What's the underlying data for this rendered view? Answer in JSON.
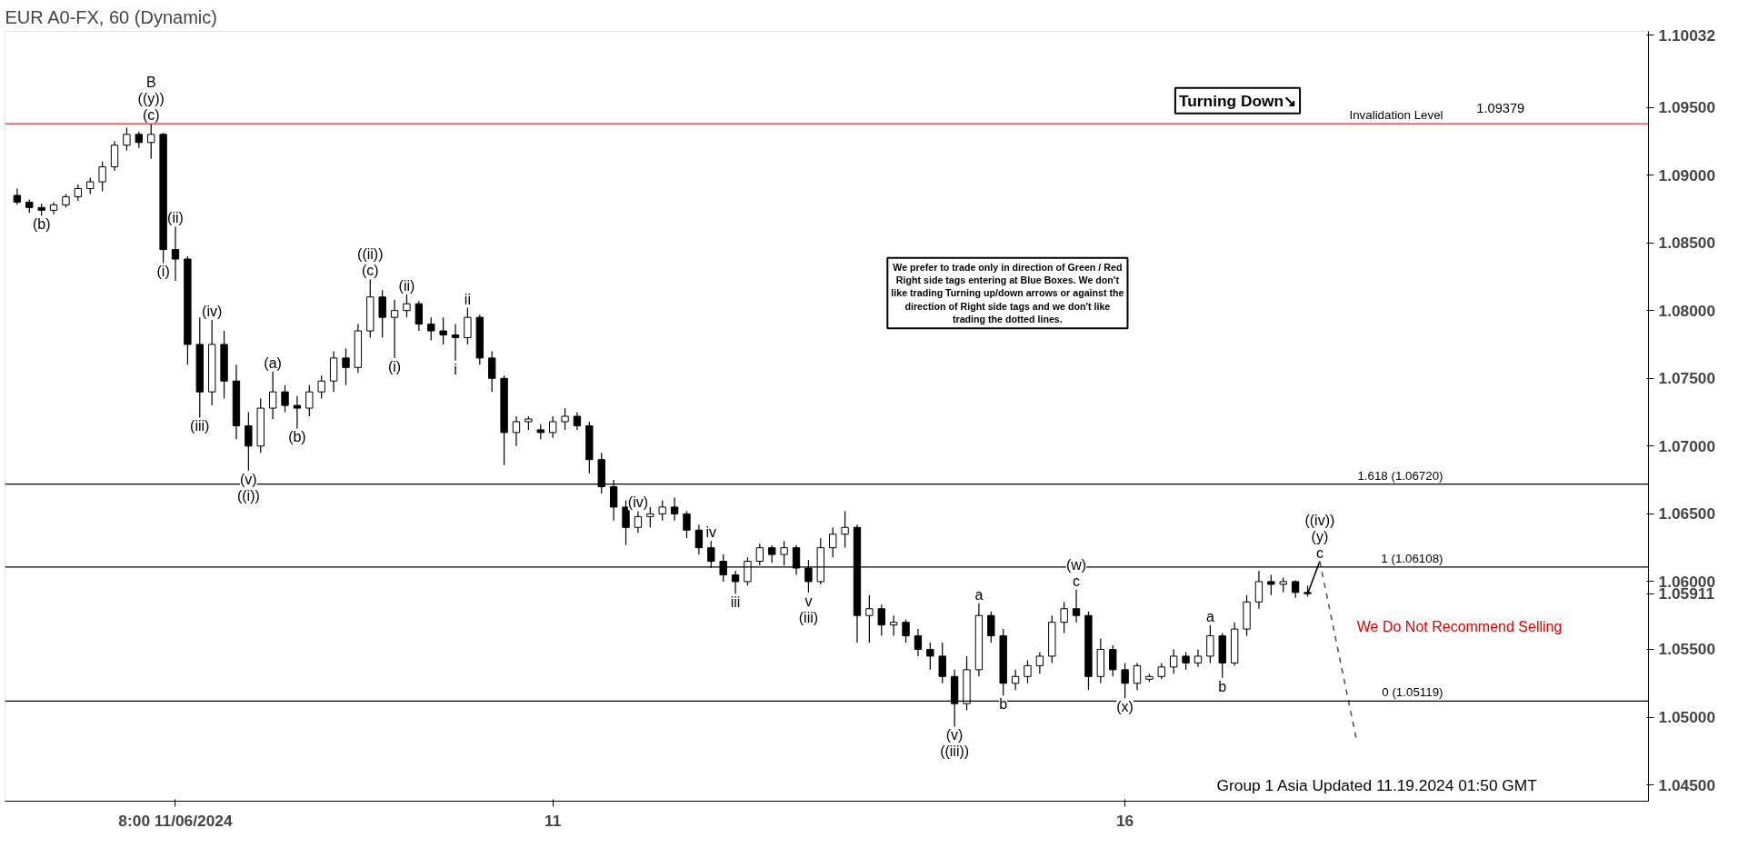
{
  "chart_data": {
    "type": "candlestick",
    "title": "EUR A0-FX, 60 (Dynamic)",
    "categories": [
      null,
      null,
      null,
      null,
      null,
      null,
      null,
      null,
      null,
      null,
      null,
      null,
      null,
      "8:00 11/06/2024",
      null,
      null,
      null,
      null,
      null,
      null,
      null,
      null,
      null,
      null,
      null,
      null,
      null,
      null,
      null,
      null,
      null,
      null,
      null,
      null,
      null,
      null,
      null,
      null,
      null,
      null,
      null,
      null,
      null,
      null,
      "11",
      null,
      null,
      null,
      null,
      null,
      null,
      null,
      null,
      null,
      null,
      null,
      null,
      null,
      null,
      null,
      null,
      null,
      null,
      null,
      null,
      null,
      null,
      null,
      null,
      null,
      null,
      null,
      null,
      null,
      null,
      null,
      null,
      null,
      null,
      null,
      null,
      null,
      null,
      null,
      null,
      null,
      null,
      null,
      null,
      null,
      null,
      "16",
      null,
      null,
      null,
      null,
      null,
      null,
      null,
      null,
      null,
      null,
      null,
      null,
      null,
      null,
      null,
      null,
      null,
      null,
      null,
      null,
      null,
      null,
      null,
      null,
      null,
      null,
      null,
      null,
      null,
      null,
      null,
      null,
      null,
      null,
      null,
      null,
      null,
      null,
      null,
      null,
      null,
      null
    ],
    "ohlc": [
      [
        1.0885,
        1.089,
        1.0878,
        1.088
      ],
      [
        1.088,
        1.0882,
        1.0872,
        1.0876
      ],
      [
        1.0876,
        1.0879,
        1.087,
        1.0874
      ],
      [
        1.0874,
        1.088,
        1.0871,
        1.0878
      ],
      [
        1.0878,
        1.0886,
        1.0876,
        1.0884
      ],
      [
        1.0884,
        1.0893,
        1.0881,
        1.089
      ],
      [
        1.089,
        1.0898,
        1.0886,
        1.0895
      ],
      [
        1.0895,
        1.091,
        1.0888,
        1.0906
      ],
      [
        1.0906,
        1.0925,
        1.0903,
        1.0922
      ],
      [
        1.0922,
        1.0935,
        1.0918,
        1.093
      ],
      [
        1.093,
        1.0932,
        1.092,
        1.0924
      ],
      [
        1.0924,
        1.09379,
        1.0912,
        1.093
      ],
      [
        1.093,
        1.0931,
        1.0835,
        1.0845
      ],
      [
        1.0845,
        1.0862,
        1.0822,
        1.0838
      ],
      [
        1.0838,
        1.084,
        1.076,
        1.0775
      ],
      [
        1.0775,
        1.0795,
        1.0721,
        1.074
      ],
      [
        1.074,
        1.0793,
        1.073,
        1.0775
      ],
      [
        1.0775,
        1.0785,
        1.0735,
        1.0748
      ],
      [
        1.0748,
        1.076,
        1.0705,
        1.0715
      ],
      [
        1.0715,
        1.0725,
        1.0682,
        1.07
      ],
      [
        1.07,
        1.0735,
        1.0695,
        1.0728
      ],
      [
        1.0728,
        1.0755,
        1.072,
        1.074
      ],
      [
        1.074,
        1.0745,
        1.0725,
        1.073
      ],
      [
        1.073,
        1.0737,
        1.0713,
        1.0728
      ],
      [
        1.0728,
        1.0745,
        1.0722,
        1.074
      ],
      [
        1.074,
        1.0752,
        1.0735,
        1.0748
      ],
      [
        1.0748,
        1.077,
        1.074,
        1.0765
      ],
      [
        1.0765,
        1.0772,
        1.0745,
        1.0758
      ],
      [
        1.0758,
        1.079,
        1.0754,
        1.0785
      ],
      [
        1.0785,
        1.0823,
        1.078,
        1.081
      ],
      [
        1.081,
        1.0815,
        1.078,
        1.0795
      ],
      [
        1.0795,
        1.0808,
        1.0765,
        1.08
      ],
      [
        1.08,
        1.0812,
        1.0795,
        1.0805
      ],
      [
        1.0805,
        1.0807,
        1.0785,
        1.079
      ],
      [
        1.079,
        1.0795,
        1.0778,
        1.0785
      ],
      [
        1.0785,
        1.0795,
        1.0775,
        1.0782
      ],
      [
        1.0782,
        1.079,
        1.0763,
        1.078
      ],
      [
        1.078,
        1.0802,
        1.0775,
        1.0795
      ],
      [
        1.0795,
        1.0797,
        1.076,
        1.0765
      ],
      [
        1.0765,
        1.077,
        1.074,
        1.075
      ],
      [
        1.075,
        1.0752,
        1.0686,
        1.071
      ],
      [
        1.071,
        1.0722,
        1.07,
        1.0718
      ],
      [
        1.0718,
        1.0722,
        1.0712,
        1.072
      ],
      [
        1.0712,
        1.0716,
        1.0705,
        1.071
      ],
      [
        1.071,
        1.0722,
        1.0706,
        1.0718
      ],
      [
        1.0718,
        1.0728,
        1.0712,
        1.0722
      ],
      [
        1.0722,
        1.0725,
        1.0712,
        1.0715
      ],
      [
        1.0715,
        1.0718,
        1.068,
        1.069
      ],
      [
        1.069,
        1.0695,
        1.0665,
        1.067
      ],
      [
        1.067,
        1.0675,
        1.0645,
        1.0655
      ],
      [
        1.0655,
        1.066,
        1.0627,
        1.064
      ],
      [
        1.064,
        1.0652,
        1.0636,
        1.0648
      ],
      [
        1.0648,
        1.0655,
        1.064,
        1.065
      ],
      [
        1.065,
        1.066,
        1.0645,
        1.0655
      ],
      [
        1.0655,
        1.0662,
        1.0645,
        1.065
      ],
      [
        1.065,
        1.0652,
        1.0632,
        1.0638
      ],
      [
        1.0638,
        1.0642,
        1.062,
        1.0625
      ],
      [
        1.0625,
        1.063,
        1.061,
        1.0615
      ],
      [
        1.0615,
        1.062,
        1.06,
        1.0605
      ],
      [
        1.0605,
        1.0608,
        1.0591,
        1.06
      ],
      [
        1.06,
        1.0618,
        1.0597,
        1.0615
      ],
      [
        1.0615,
        1.0628,
        1.0612,
        1.0625
      ],
      [
        1.0625,
        1.0627,
        1.0614,
        1.062
      ],
      [
        1.062,
        1.063,
        1.0612,
        1.0625
      ],
      [
        1.0625,
        1.0627,
        1.0605,
        1.061
      ],
      [
        1.061,
        1.0616,
        1.0592,
        1.06
      ],
      [
        1.06,
        1.0632,
        1.0598,
        1.0625
      ],
      [
        1.0625,
        1.064,
        1.0618,
        1.0635
      ],
      [
        1.0635,
        1.0652,
        1.0625,
        1.064
      ],
      [
        1.064,
        1.0642,
        1.0555,
        1.0575
      ],
      [
        1.0575,
        1.059,
        1.0555,
        1.058
      ],
      [
        1.058,
        1.0583,
        1.056,
        1.0568
      ],
      [
        1.0568,
        1.0575,
        1.056,
        1.057
      ],
      [
        1.057,
        1.0572,
        1.0555,
        1.056
      ],
      [
        1.056,
        1.0565,
        1.0545,
        1.055
      ],
      [
        1.055,
        1.0555,
        1.0535,
        1.0545
      ],
      [
        1.0545,
        1.0555,
        1.0525,
        1.053
      ],
      [
        1.053,
        1.0535,
        1.0493,
        1.051
      ],
      [
        1.051,
        1.0545,
        1.0505,
        1.0535
      ],
      [
        1.0535,
        1.0584,
        1.053,
        1.0575
      ],
      [
        1.0575,
        1.0578,
        1.0555,
        1.056
      ],
      [
        1.056,
        1.0565,
        1.0516,
        1.0525
      ],
      [
        1.0525,
        1.0535,
        1.052,
        1.053
      ],
      [
        1.053,
        1.0542,
        1.0525,
        1.0538
      ],
      [
        1.0538,
        1.0548,
        1.0532,
        1.0545
      ],
      [
        1.0545,
        1.0575,
        1.054,
        1.057
      ],
      [
        1.057,
        1.0585,
        1.0562,
        1.058
      ],
      [
        1.058,
        1.0594,
        1.057,
        1.0575
      ],
      [
        1.0575,
        1.0578,
        1.052,
        1.053
      ],
      [
        1.053,
        1.0558,
        1.0525,
        1.055
      ],
      [
        1.055,
        1.0553,
        1.053,
        1.0535
      ],
      [
        1.0535,
        1.054,
        1.0514,
        1.0525
      ],
      [
        1.0525,
        1.054,
        1.052,
        1.0538
      ],
      [
        1.0528,
        1.0532,
        1.0526,
        1.053
      ],
      [
        1.053,
        1.054,
        1.0528,
        1.0537
      ],
      [
        1.0537,
        1.055,
        1.0532,
        1.0545
      ],
      [
        1.0545,
        1.0548,
        1.0535,
        1.054
      ],
      [
        1.054,
        1.055,
        1.0537,
        1.0545
      ],
      [
        1.0545,
        1.0568,
        1.054,
        1.056
      ],
      [
        1.056,
        1.0562,
        1.0529,
        1.054
      ],
      [
        1.054,
        1.057,
        1.0538,
        1.0565
      ],
      [
        1.0565,
        1.059,
        1.056,
        1.0585
      ],
      [
        1.0585,
        1.0608,
        1.058,
        1.06
      ],
      [
        1.06,
        1.0605,
        1.059,
        1.0598
      ],
      [
        1.0598,
        1.0603,
        1.0592,
        1.06
      ],
      [
        1.06,
        1.0601,
        1.0588,
        1.0592
      ],
      [
        1.0592,
        1.0597,
        1.0589,
        1.05911
      ],
      null,
      null,
      null,
      null,
      null,
      null,
      null,
      null,
      null,
      null,
      null,
      null,
      null,
      null,
      null,
      null,
      null,
      null,
      null,
      null,
      null,
      null,
      null,
      null,
      null,
      null,
      null
    ],
    "color": "#000000",
    "series": [
      {
        "type": "line",
        "color": "#000000",
        "line_style": "solid",
        "values": [
          null,
          null,
          null,
          null,
          null,
          null,
          null,
          null,
          null,
          null,
          null,
          null,
          null,
          null,
          null,
          null,
          null,
          null,
          null,
          null,
          null,
          null,
          null,
          null,
          null,
          null,
          null,
          null,
          null,
          null,
          null,
          null,
          null,
          null,
          null,
          null,
          null,
          null,
          null,
          null,
          null,
          null,
          null,
          null,
          null,
          null,
          null,
          null,
          null,
          null,
          null,
          null,
          null,
          null,
          null,
          null,
          null,
          null,
          null,
          null,
          null,
          null,
          null,
          null,
          null,
          null,
          null,
          null,
          null,
          null,
          null,
          null,
          null,
          null,
          null,
          null,
          null,
          null,
          null,
          null,
          null,
          null,
          null,
          null,
          null,
          null,
          null,
          null,
          null,
          null,
          null,
          null,
          null,
          null,
          null,
          null,
          null,
          null,
          null,
          null,
          null,
          null,
          null,
          null,
          null,
          null,
          1.05911,
          1.0615,
          null,
          null,
          null,
          null,
          null,
          null,
          null,
          null,
          null,
          null,
          null,
          null,
          null,
          null,
          null,
          null,
          null,
          null,
          null,
          null,
          null,
          null,
          null,
          null,
          null,
          null
        ]
      },
      {
        "type": "line",
        "color": "#555555",
        "line_style": "dashed",
        "values": [
          null,
          null,
          null,
          null,
          null,
          null,
          null,
          null,
          null,
          null,
          null,
          null,
          null,
          null,
          null,
          null,
          null,
          null,
          null,
          null,
          null,
          null,
          null,
          null,
          null,
          null,
          null,
          null,
          null,
          null,
          null,
          null,
          null,
          null,
          null,
          null,
          null,
          null,
          null,
          null,
          null,
          null,
          null,
          null,
          null,
          null,
          null,
          null,
          null,
          null,
          null,
          null,
          null,
          null,
          null,
          null,
          null,
          null,
          null,
          null,
          null,
          null,
          null,
          null,
          null,
          null,
          null,
          null,
          null,
          null,
          null,
          null,
          null,
          null,
          null,
          null,
          null,
          null,
          null,
          null,
          null,
          null,
          null,
          null,
          null,
          null,
          null,
          null,
          null,
          null,
          null,
          null,
          null,
          null,
          null,
          null,
          null,
          null,
          null,
          null,
          null,
          null,
          null,
          null,
          null,
          null,
          null,
          1.0615,
          null,
          null,
          1.0484,
          null,
          null,
          null,
          null,
          null,
          null,
          null,
          null,
          null,
          null,
          null,
          null,
          null,
          null,
          null,
          null,
          null,
          null,
          null,
          null,
          null,
          null,
          null
        ]
      }
    ],
    "ylim": [
      1.0438,
      1.1006
    ],
    "yticks": [
      {
        "value": 1.045,
        "label": "1.04500"
      },
      {
        "value": 1.05,
        "label": "1.05000"
      },
      {
        "value": 1.055,
        "label": "1.05500"
      },
      {
        "value": 1.06,
        "label": "1.06000"
      },
      {
        "value": 1.065,
        "label": "1.06500"
      },
      {
        "value": 1.07,
        "label": "1.07000"
      },
      {
        "value": 1.075,
        "label": "1.07500"
      },
      {
        "value": 1.08,
        "label": "1.08000"
      },
      {
        "value": 1.085,
        "label": "1.08500"
      },
      {
        "value": 1.09,
        "label": "1.09000"
      },
      {
        "value": 1.095,
        "label": "1.09500"
      },
      1.05911,
      1.10032
    ],
    "ref_lines": [
      {
        "axis": "y",
        "value": 1.09379,
        "label": "Invalidation Level",
        "color": "#e03030",
        "line_style": "solid"
      },
      {
        "axis": "y",
        "value": 1.0672,
        "label": "1.618 (1.06720)",
        "color": "#000000",
        "line_style": "solid"
      },
      {
        "axis": "y",
        "value": 1.06108,
        "label": "1 (1.06108)",
        "color": "#000000",
        "line_style": "solid"
      },
      {
        "axis": "y",
        "value": 1.05119,
        "label": "0 (1.05119)",
        "color": "#000000",
        "line_style": "solid"
      }
    ],
    "annotations": [
      "Turning Down↘",
      "We prefer to trade only in direction of Green / Red Right side tags entering at Blue Boxes. We don't like trading Turning up/down arrows or against the direction of Right side tags and we don't like trading the dotted lines.",
      "We Do Not Recommend Selling",
      "Group 1 Asia Updated 11.19.2024 01:50 GMT",
      "1.09379",
      {
        "text": "B",
        "y": 1.09379
      },
      {
        "text": "((y))",
        "y": 1.09379
      },
      {
        "text": "(c)",
        "y": 1.09379
      },
      {
        "text": "(b)",
        "y": 1.087
      },
      {
        "text": "(ii)",
        "y": 1.0862
      },
      {
        "text": "(i)",
        "y": 1.0835
      },
      {
        "text": "(iii)",
        "y": 1.0721
      },
      {
        "text": "(iv)",
        "y": 1.0793
      },
      {
        "text": "(v)",
        "y": 1.0682
      },
      {
        "text": "((i))",
        "y": 1.0682
      },
      {
        "text": "(a)",
        "y": 1.0755
      },
      {
        "text": "(b)",
        "y": 1.0713
      },
      {
        "text": "((ii))",
        "y": 1.0823
      },
      {
        "text": "(c)",
        "y": 1.0823
      },
      {
        "text": "(ii)",
        "y": 1.0812
      },
      {
        "text": "(i)",
        "y": 1.0765
      },
      {
        "text": "ii",
        "y": 1.0802
      },
      {
        "text": "i",
        "y": 1.0763
      },
      {
        "text": "iii",
        "y": 1.0591
      },
      {
        "text": "iv",
        "y": 1.063
      },
      {
        "text": "v",
        "y": 1.0592
      },
      {
        "text": "(iii)",
        "y": 1.0592
      },
      {
        "text": "(iv)",
        "y": 1.0652
      },
      {
        "text": "a",
        "y": 1.0584
      },
      {
        "text": "b",
        "y": 1.0516
      },
      {
        "text": "(v)",
        "y": 1.0493
      },
      {
        "text": "((iii))",
        "y": 1.0493
      },
      {
        "text": "(w)",
        "y": 1.0594
      },
      {
        "text": "c",
        "y": 1.0594
      },
      {
        "text": "(x)",
        "y": 1.0514
      },
      {
        "text": "a",
        "y": 1.0568
      },
      {
        "text": "b",
        "y": 1.0529
      },
      {
        "text": "((iv))",
        "y": 1.0615
      },
      {
        "text": "(y)",
        "y": 1.0615
      },
      {
        "text": "c",
        "y": 1.0615
      }
    ]
  }
}
